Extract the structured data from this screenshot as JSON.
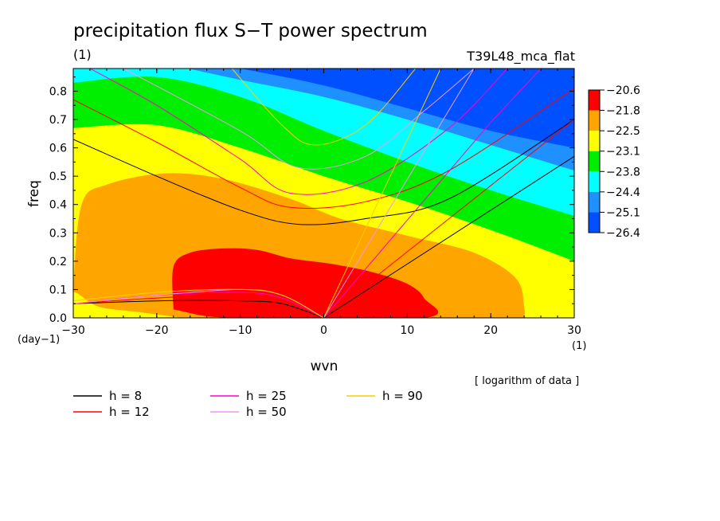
{
  "chart_data": {
    "type": "heatmap",
    "title": "precipitation flux S−T power spectrum",
    "subtitle_left": "(1)",
    "subtitle_right": "T39L48_mca_flat",
    "xlabel": "wvn",
    "ylabel": "freq",
    "x_unit": "(1)",
    "y_unit": "(day−1)",
    "xlim": [
      -30,
      30
    ],
    "ylim": [
      0,
      0.88
    ],
    "xticks": [
      -30,
      -20,
      -10,
      0,
      10,
      20,
      30
    ],
    "xtick_labels": [
      "−30",
      "−20",
      "−10",
      "0",
      "10",
      "20",
      "30"
    ],
    "yticks": [
      0,
      0.1,
      0.2,
      0.3,
      0.4,
      0.5,
      0.6,
      0.7,
      0.8
    ],
    "ytick_labels": [
      "0.0",
      "0.1",
      "0.2",
      "0.3",
      "0.4",
      "0.5",
      "0.6",
      "0.7",
      "0.8"
    ],
    "note": "[ logarithm of data ]",
    "colorbar": {
      "levels": [
        -20.6,
        -21.8,
        -22.5,
        -23.1,
        -23.8,
        -24.4,
        -25.1,
        -26.4
      ],
      "labels": [
        "−20.6",
        "−21.8",
        "−22.5",
        "−23.1",
        "−23.8",
        "−24.4",
        "−25.1",
        "−26.4"
      ],
      "colors": [
        "#ff0000",
        "#ffa500",
        "#ffff00",
        "#00ee00",
        "#00ffff",
        "#1e90ff",
        "#0050ff"
      ]
    },
    "contour_regions": [
      {
        "level_range": "< -25.1",
        "color": "#0050ff",
        "boundary_upper": false,
        "points": [
          [
            -10,
            0.88
          ],
          [
            0,
            0.8
          ],
          [
            10,
            0.7
          ],
          [
            20,
            0.62
          ],
          [
            30,
            0.58
          ]
        ]
      },
      {
        "level_range": "-25.1 to -24.4",
        "color": "#1e90ff",
        "boundary_upper": false,
        "points": [
          [
            -10,
            0.88
          ],
          [
            0,
            0.8
          ],
          [
            10,
            0.7
          ],
          [
            20,
            0.62
          ],
          [
            30,
            0.58
          ]
        ]
      },
      {
        "level_range": "-24.4 to -23.8",
        "color": "#00ffff",
        "points": [
          [
            -30,
            0.85
          ],
          [
            -20,
            0.84
          ],
          [
            -10,
            0.76
          ],
          [
            0,
            0.64
          ],
          [
            10,
            0.53
          ],
          [
            20,
            0.43
          ],
          [
            30,
            0.36
          ]
        ]
      },
      {
        "level_range": "-23.8 to -23.1",
        "color": "#00ee00",
        "points": [
          [
            -30,
            0.68
          ],
          [
            -20,
            0.68
          ],
          [
            -10,
            0.6
          ],
          [
            0,
            0.5
          ],
          [
            10,
            0.4
          ],
          [
            20,
            0.3
          ],
          [
            30,
            0.2
          ]
        ]
      },
      {
        "level_range": "-23.1 to -22.5",
        "color": "#ffff00",
        "points": [
          [
            -30,
            0.06
          ],
          [
            -29,
            0.4
          ],
          [
            -25,
            0.49
          ],
          [
            -18,
            0.51
          ],
          [
            -10,
            0.47
          ],
          [
            0,
            0.36
          ],
          [
            10,
            0.29
          ],
          [
            20,
            0.23
          ],
          [
            24,
            0.14
          ],
          [
            24,
            0.0
          ]
        ]
      },
      {
        "level_range": "-22.5 to -21.8",
        "color": "#ffa500",
        "points": [
          [
            -14,
            0.06
          ],
          [
            -16,
            0.2
          ],
          [
            -15,
            0.22
          ],
          [
            -12,
            0.24
          ],
          [
            -8,
            0.24
          ],
          [
            -4,
            0.2
          ],
          [
            2,
            0.18
          ],
          [
            8,
            0.15
          ],
          [
            11,
            0.12
          ],
          [
            12,
            0.0
          ]
        ]
      },
      {
        "level_range": "> -21.8",
        "color": "#ff0000"
      }
    ],
    "series": [
      {
        "name": "h = 8",
        "color": "#000000",
        "kelvin": [
          [
            0,
            0
          ],
          [
            30,
            0.57
          ]
        ],
        "inertia_gravity": [
          [
            -30,
            0.63
          ],
          [
            -20,
            0.5
          ],
          [
            -10,
            0.38
          ],
          [
            -3,
            0.33
          ],
          [
            5,
            0.35
          ],
          [
            15,
            0.42
          ],
          [
            30,
            0.7
          ]
        ],
        "rossby": [
          [
            -30,
            0.05
          ],
          [
            -20,
            0.06
          ],
          [
            -10,
            0.06
          ],
          [
            -5,
            0.05
          ],
          [
            0,
            0.0
          ]
        ]
      },
      {
        "name": "h = 12",
        "color": "#ff0000",
        "kelvin": [
          [
            0,
            0
          ],
          [
            30,
            0.7
          ]
        ],
        "inertia_gravity": [
          [
            -30,
            0.77
          ],
          [
            -20,
            0.62
          ],
          [
            -10,
            0.46
          ],
          [
            -4,
            0.39
          ],
          [
            5,
            0.41
          ],
          [
            15,
            0.52
          ],
          [
            30,
            0.81
          ]
        ],
        "rossby": [
          [
            -30,
            0.05
          ],
          [
            -20,
            0.07
          ],
          [
            -10,
            0.08
          ],
          [
            -5,
            0.06
          ],
          [
            0,
            0.0
          ]
        ]
      },
      {
        "name": "h = 25",
        "color": "#ff00cc",
        "kelvin": [
          [
            0,
            0
          ],
          [
            20,
            0.69
          ],
          [
            26,
            0.88
          ]
        ],
        "inertia_gravity": [
          [
            -28,
            0.88
          ],
          [
            -20,
            0.75
          ],
          [
            -10,
            0.56
          ],
          [
            -4,
            0.44
          ],
          [
            5,
            0.48
          ],
          [
            15,
            0.67
          ],
          [
            22,
            0.88
          ]
        ],
        "rossby": [
          [
            -30,
            0.05
          ],
          [
            -20,
            0.08
          ],
          [
            -10,
            0.09
          ],
          [
            -5,
            0.07
          ],
          [
            0,
            0.0
          ]
        ]
      },
      {
        "name": "h = 50",
        "color": "#ee99ee",
        "kelvin": [
          [
            0,
            0
          ],
          [
            18,
            0.88
          ]
        ],
        "inertia_gravity": [
          [
            -24,
            0.88
          ],
          [
            -10,
            0.66
          ],
          [
            -3,
            0.53
          ],
          [
            5,
            0.57
          ],
          [
            12,
            0.73
          ],
          [
            18,
            0.88
          ]
        ],
        "rossby": [
          [
            -30,
            0.05
          ],
          [
            -20,
            0.08
          ],
          [
            -10,
            0.1
          ],
          [
            -5,
            0.08
          ],
          [
            0,
            0.0
          ]
        ]
      },
      {
        "name": "h = 90",
        "color": "#ffcc00",
        "kelvin": [
          [
            0,
            0
          ],
          [
            14,
            0.88
          ]
        ],
        "inertia_gravity": [
          [
            -11,
            0.88
          ],
          [
            -5,
            0.68
          ],
          [
            -1,
            0.61
          ],
          [
            5,
            0.68
          ],
          [
            11,
            0.88
          ]
        ],
        "rossby": [
          [
            -30,
            0.06
          ],
          [
            -20,
            0.09
          ],
          [
            -10,
            0.1
          ],
          [
            -5,
            0.08
          ],
          [
            0,
            0.0
          ]
        ]
      }
    ],
    "legend": {
      "entries": [
        "h =  8",
        "h = 12",
        "h = 25",
        "h = 50",
        "h = 90"
      ],
      "colors": [
        "#000000",
        "#ff0000",
        "#ff00cc",
        "#ee99ee",
        "#ffcc00"
      ]
    }
  }
}
